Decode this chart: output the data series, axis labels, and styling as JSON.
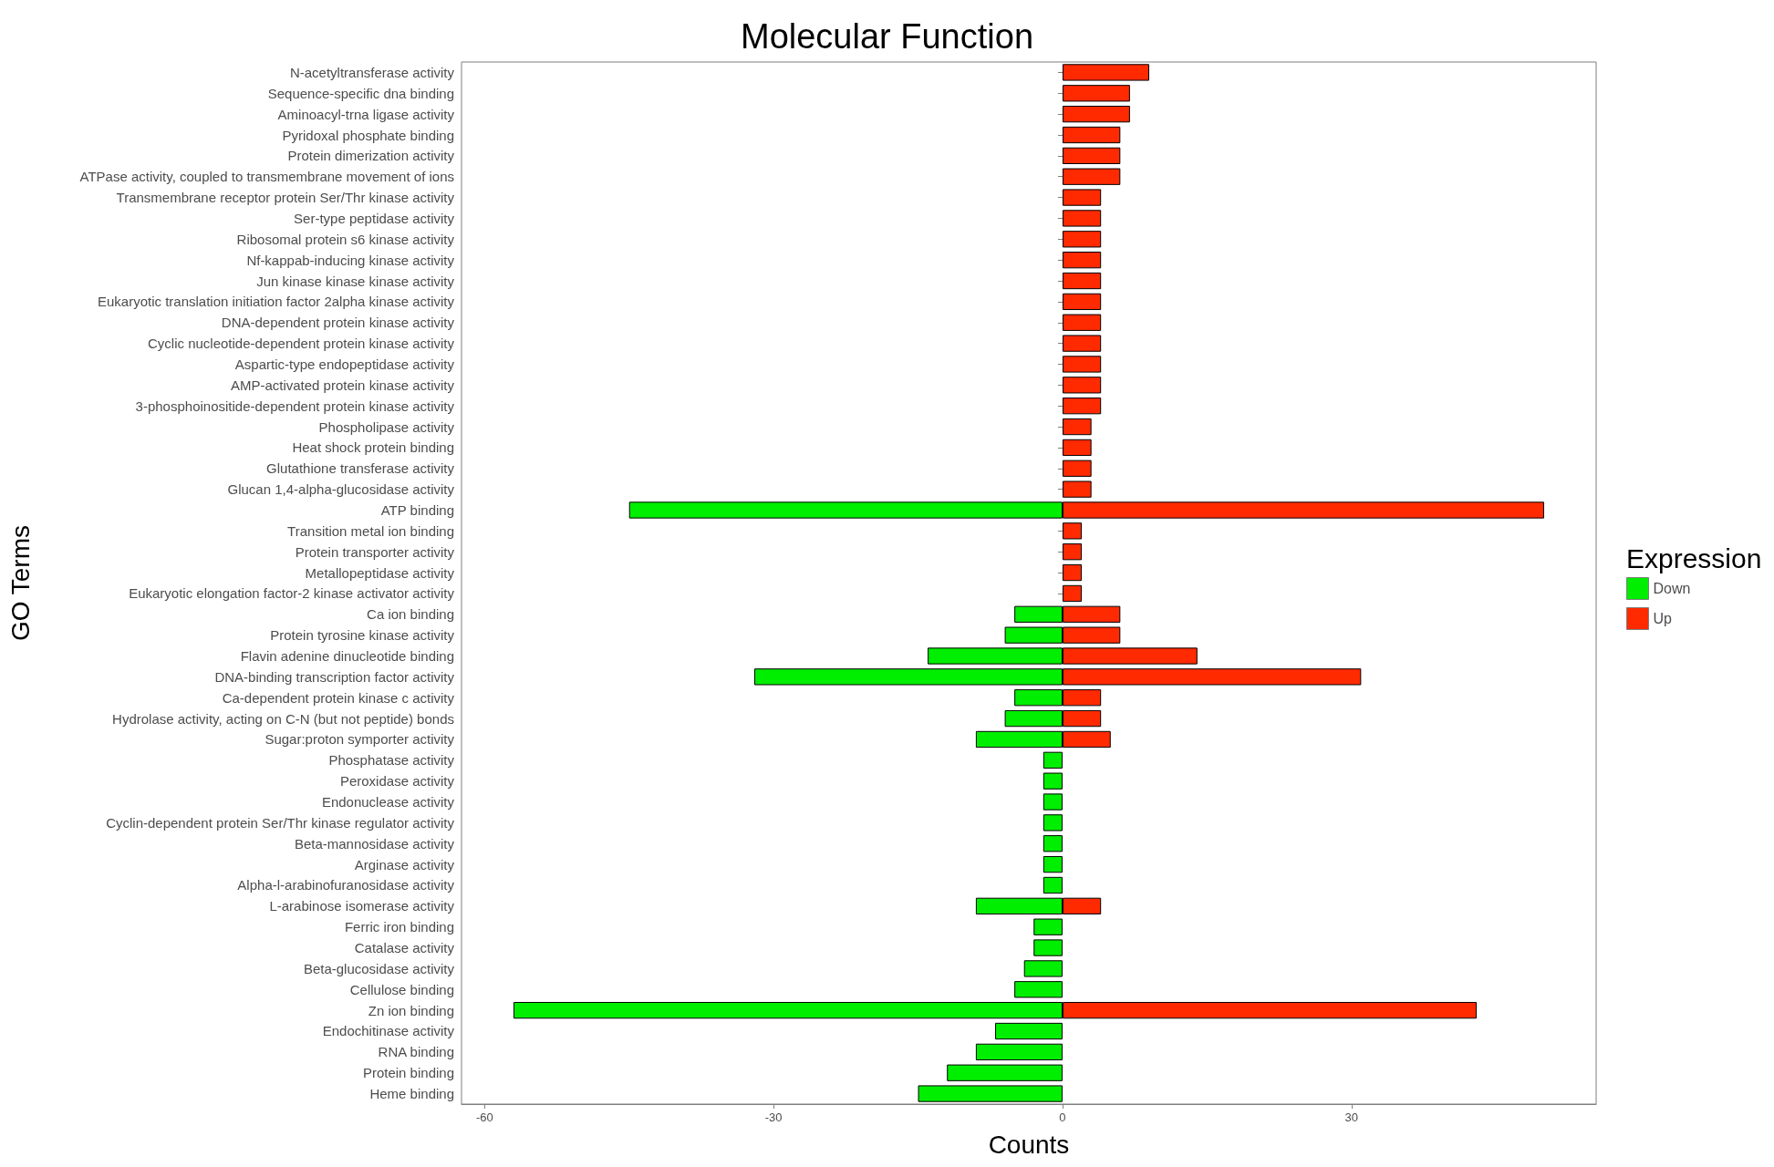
{
  "chart_data": {
    "type": "bar",
    "orientation": "horizontal",
    "stacked": true,
    "title": "Molecular Function",
    "xlabel": "Counts",
    "ylabel": "GO Terms",
    "legend_title": "Expression",
    "legend": "right",
    "grid": false,
    "categories": [
      "N-acetyltransferase activity",
      "Sequence-specific dna binding",
      "Aminoacyl-trna ligase activity",
      "Pyridoxal phosphate binding",
      "Protein dimerization activity",
      "ATPase activity, coupled to transmembrane movement of ions",
      "Transmembrane receptor protein Ser/Thr kinase activity",
      "Ser-type peptidase activity",
      "Ribosomal protein s6 kinase activity",
      "Nf-kappab-inducing kinase activity",
      "Jun kinase kinase kinase activity",
      "Eukaryotic translation initiation factor 2alpha kinase activity",
      "DNA-dependent protein kinase activity",
      "Cyclic nucleotide-dependent protein kinase activity",
      "Aspartic-type endopeptidase activity",
      "AMP-activated protein kinase activity",
      "3-phosphoinositide-dependent protein kinase activity",
      "Phospholipase activity",
      "Heat shock protein binding",
      "Glutathione transferase activity",
      "Glucan 1,4-alpha-glucosidase activity",
      "ATP binding",
      "Transition metal ion binding",
      "Protein transporter activity",
      "Metallopeptidase activity",
      "Eukaryotic elongation factor-2 kinase activator activity",
      "Ca ion binding",
      "Protein tyrosine kinase activity",
      "Flavin adenine dinucleotide binding",
      "DNA-binding transcription factor activity",
      "Ca-dependent protein kinase c activity",
      "Hydrolase activity, acting on C-N (but not peptide) bonds",
      "Sugar:proton symporter activity",
      "Phosphatase activity",
      "Peroxidase activity",
      "Endonuclease activity",
      "Cyclin-dependent protein Ser/Thr kinase regulator activity",
      "Beta-mannosidase activity",
      "Arginase activity",
      "Alpha-l-arabinofuranosidase activity",
      "L-arabinose isomerase activity",
      "Ferric iron binding",
      "Catalase activity",
      "Beta-glucosidase activity",
      "Cellulose binding",
      "Zn ion binding",
      "Endochitinase activity",
      "RNA binding",
      "Protein binding",
      "Heme binding"
    ],
    "series": [
      {
        "name": "Down",
        "color": "#00ee00",
        "values": [
          null,
          null,
          null,
          null,
          null,
          null,
          null,
          null,
          null,
          null,
          null,
          null,
          null,
          null,
          null,
          null,
          null,
          null,
          null,
          null,
          null,
          -45,
          null,
          null,
          null,
          null,
          -5,
          -6,
          -14,
          -32,
          -5,
          -6,
          -9,
          -2,
          -2,
          -2,
          -2,
          -2,
          -2,
          -2,
          -9,
          -3,
          -3,
          -4,
          -5,
          -57,
          -7,
          -9,
          -12,
          -15
        ]
      },
      {
        "name": "Up",
        "color": "#ff2a00",
        "values": [
          9,
          7,
          7,
          6,
          6,
          6,
          4,
          4,
          4,
          4,
          4,
          4,
          4,
          4,
          4,
          4,
          4,
          3,
          3,
          3,
          3,
          50,
          2,
          2,
          2,
          2,
          6,
          6,
          14,
          31,
          4,
          4,
          5,
          null,
          null,
          null,
          null,
          null,
          null,
          null,
          4,
          null,
          null,
          null,
          null,
          43,
          null,
          null,
          null,
          null
        ]
      }
    ],
    "xlim": [
      -62.4,
      55.4
    ],
    "xticks": [
      -60,
      -30,
      0,
      30
    ]
  }
}
